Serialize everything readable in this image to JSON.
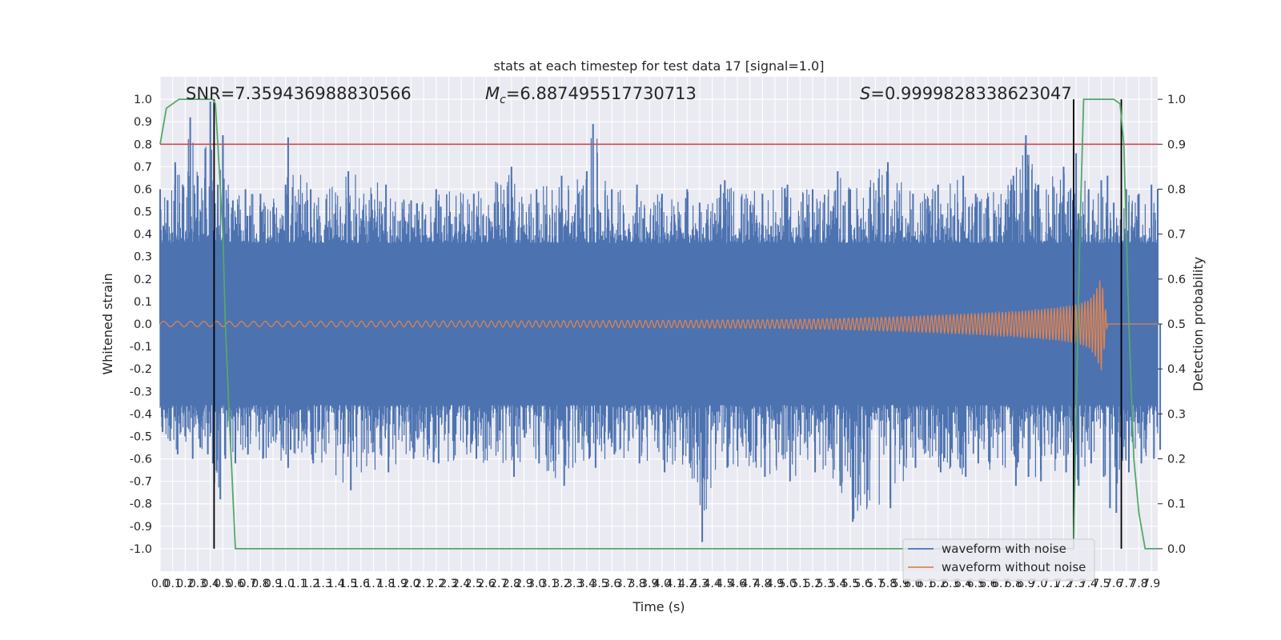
{
  "chart_data": {
    "type": "line",
    "title": "stats at each timestep for test data 17 [signal=1.0]",
    "xlabel": "Time (s)",
    "ylabel": "Whitened strain",
    "y2label": "Detection probability",
    "xlim": [
      0.0,
      7.95
    ],
    "ylim": [
      -1.1,
      1.1
    ],
    "y2lim": [
      -0.05,
      1.05
    ],
    "grid": true,
    "legend_position": "lower-right",
    "x_tick_labels": [
      "0.0",
      "0.1",
      "0.2",
      "0.3",
      "0.4",
      "0.5",
      "0.6",
      "0.7",
      "0.8",
      "0.9",
      "1.0",
      "1.1",
      "1.2",
      "1.3",
      "1.4",
      "1.5",
      "1.6",
      "1.7",
      "1.8",
      "1.9",
      "2.0",
      "2.1",
      "2.2",
      "2.3",
      "2.4",
      "2.5",
      "2.6",
      "2.7",
      "2.8",
      "2.9",
      "3.0",
      "3.1",
      "3.2",
      "3.3",
      "3.4",
      "3.5",
      "3.6",
      "3.7",
      "3.8",
      "3.9",
      "4.0",
      "4.1",
      "4.2",
      "4.3",
      "4.4",
      "4.5",
      "4.6",
      "4.7",
      "4.8",
      "4.9",
      "5.0",
      "5.1",
      "5.2",
      "5.3",
      "5.4",
      "5.5",
      "5.6",
      "5.7",
      "5.8",
      "5.9",
      "6.0",
      "6.1",
      "6.2",
      "6.3",
      "6.4",
      "6.5",
      "6.6",
      "6.7",
      "6.8",
      "6.9",
      "7.0",
      "7.1",
      "7.2",
      "7.3",
      "7.4",
      "7.5",
      "7.6",
      "7.7",
      "7.8",
      "7.9"
    ],
    "y_tick_labels": [
      "1.0",
      "0.9",
      "0.8",
      "0.7",
      "0.6",
      "0.5",
      "0.4",
      "0.3",
      "0.2",
      "0.1",
      "0.0",
      "-0.1",
      "-0.2",
      "-0.3",
      "-0.4",
      "-0.5",
      "-0.6",
      "-0.7",
      "-0.8",
      "-0.9",
      "-1.0"
    ],
    "y2_tick_labels": [
      "1.0",
      "0.9",
      "0.8",
      "0.7",
      "0.6",
      "0.5",
      "0.4",
      "0.3",
      "0.2",
      "0.1",
      "0.0"
    ],
    "annotations": {
      "snr": "SNR=7.359436988830566",
      "mc_symbol": "M",
      "mc_sub": "c",
      "mc_value": "=6.887495517730713",
      "s_symbol": "S",
      "s_value": "=0.9999828338623047"
    },
    "threshold_line": {
      "value": 0.8,
      "color": "#c44e52"
    },
    "detection_boundaries": [
      0.43,
      7.28,
      7.66
    ],
    "series": [
      {
        "name": "waveform with noise",
        "color": "#4c72b0",
        "axis": "left",
        "envelope": {
          "x": [
            0.0,
            0.06,
            0.12,
            0.18,
            0.24,
            0.3,
            0.36,
            0.4,
            0.46,
            0.5,
            0.58,
            0.68,
            0.8,
            1.0,
            1.02,
            1.2,
            1.5,
            1.8,
            2.0,
            2.2,
            2.5,
            2.8,
            3.0,
            3.2,
            3.4,
            3.45,
            3.6,
            3.8,
            4.0,
            4.2,
            4.3,
            4.5,
            4.8,
            5.0,
            5.2,
            5.4,
            5.5,
            5.8,
            6.0,
            6.2,
            6.4,
            6.5,
            6.8,
            6.9,
            7.0,
            7.2,
            7.3,
            7.4,
            7.5,
            7.55,
            7.6,
            7.7,
            7.8,
            7.9,
            7.95
          ],
          "max": [
            0.6,
            0.55,
            0.72,
            0.62,
            0.92,
            0.66,
            0.78,
            0.99,
            0.62,
            0.84,
            0.55,
            0.6,
            0.58,
            0.62,
            0.83,
            0.6,
            0.68,
            0.62,
            0.55,
            0.6,
            0.58,
            0.7,
            0.6,
            0.66,
            0.68,
            0.89,
            0.6,
            0.62,
            0.58,
            0.6,
            0.54,
            0.64,
            0.58,
            0.62,
            0.6,
            0.68,
            0.6,
            0.72,
            0.58,
            0.62,
            0.66,
            0.58,
            0.66,
            0.84,
            0.62,
            0.7,
            0.76,
            0.6,
            0.64,
            0.66,
            0.54,
            0.6,
            0.58,
            0.62,
            0.6
          ],
          "min": [
            -0.48,
            -0.52,
            -0.58,
            -0.5,
            -0.6,
            -0.55,
            -0.58,
            -0.62,
            -0.78,
            -0.6,
            -0.62,
            -0.58,
            -0.6,
            -0.64,
            -0.56,
            -0.62,
            -0.74,
            -0.66,
            -0.6,
            -0.62,
            -0.6,
            -0.68,
            -0.62,
            -0.72,
            -0.6,
            -0.64,
            -0.58,
            -0.62,
            -0.66,
            -0.62,
            -0.97,
            -0.64,
            -0.68,
            -0.7,
            -0.66,
            -0.72,
            -0.88,
            -0.82,
            -0.64,
            -0.66,
            -0.68,
            -0.62,
            -0.72,
            -0.68,
            -0.7,
            -0.66,
            -0.72,
            -0.62,
            -0.68,
            -0.82,
            -0.84,
            -0.66,
            -0.62,
            -0.6,
            -0.56
          ]
        }
      },
      {
        "name": "waveform without noise",
        "color": "#dd8452",
        "axis": "left",
        "envelope": {
          "x": [
            0.0,
            1.0,
            2.0,
            3.0,
            4.0,
            4.5,
            5.0,
            5.5,
            6.0,
            6.5,
            6.8,
            7.0,
            7.2,
            7.3,
            7.4,
            7.45,
            7.5,
            7.55,
            7.6,
            7.95
          ],
          "amp": [
            0.012,
            0.012,
            0.013,
            0.014,
            0.016,
            0.018,
            0.02,
            0.026,
            0.034,
            0.046,
            0.055,
            0.064,
            0.076,
            0.085,
            0.105,
            0.14,
            0.21,
            0.0,
            0.0,
            0.0
          ]
        }
      },
      {
        "name": "Detection probability",
        "color": "#55a868",
        "axis": "right",
        "x": [
          0.0,
          0.05,
          0.1,
          0.15,
          0.2,
          0.25,
          0.3,
          0.35,
          0.4,
          0.42,
          0.44,
          0.46,
          0.5,
          0.52,
          0.55,
          0.6,
          1.0,
          2.0,
          3.0,
          4.0,
          5.0,
          6.0,
          7.0,
          7.25,
          7.28,
          7.3,
          7.33,
          7.36,
          7.4,
          7.5,
          7.6,
          7.65,
          7.68,
          7.72,
          7.76,
          7.8,
          7.85,
          7.95
        ],
        "y": [
          0.9,
          0.98,
          0.99,
          1.0,
          1.0,
          1.0,
          1.0,
          1.0,
          1.0,
          1.0,
          0.99,
          0.9,
          0.7,
          0.5,
          0.3,
          0.0,
          0.0,
          0.0,
          0.0,
          0.0,
          0.0,
          0.0,
          0.0,
          0.0,
          0.0,
          0.3,
          0.7,
          1.0,
          1.0,
          1.0,
          1.0,
          0.99,
          0.9,
          0.5,
          0.2,
          0.08,
          0.0,
          0.0
        ]
      }
    ]
  }
}
